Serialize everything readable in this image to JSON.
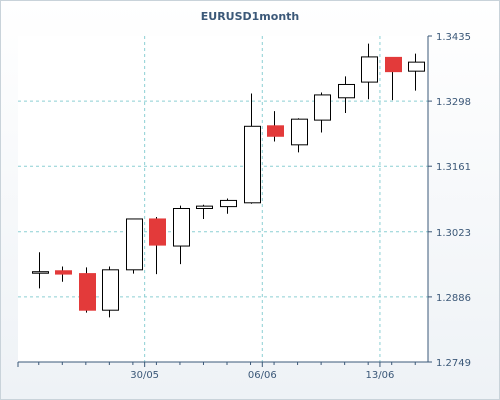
{
  "chart_data": {
    "type": "candlestick",
    "title": "EURUSD1month",
    "grid": true,
    "ylim": [
      1.2749,
      1.3435
    ],
    "y_ticks": [
      "1.3435",
      "1.3298",
      "1.3161",
      "1.3023",
      "1.2886",
      "1.2749"
    ],
    "x_ticks": [
      {
        "label": "30/05",
        "index": 4.5
      },
      {
        "label": "06/06",
        "index": 9.5
      },
      {
        "label": "13/06",
        "index": 14.5
      }
    ],
    "colors": {
      "up": "#ffffff",
      "down": "#e33a3a",
      "grid": "#8ccfd3",
      "axis": "#3b5878"
    },
    "candles": [
      {
        "open": 1.2939,
        "high": 1.298,
        "low": 1.2904,
        "close": 1.2939
      },
      {
        "open": 1.2941,
        "high": 1.295,
        "low": 1.2918,
        "close": 1.2934
      },
      {
        "open": 1.2935,
        "high": 1.2948,
        "low": 1.2853,
        "close": 1.2858
      },
      {
        "open": 1.2858,
        "high": 1.295,
        "low": 1.2843,
        "close": 1.2943
      },
      {
        "open": 1.2943,
        "high": 1.305,
        "low": 1.2935,
        "close": 1.305
      },
      {
        "open": 1.305,
        "high": 1.3054,
        "low": 1.2934,
        "close": 1.2995
      },
      {
        "open": 1.2993,
        "high": 1.3078,
        "low": 1.2955,
        "close": 1.3072
      },
      {
        "open": 1.3072,
        "high": 1.308,
        "low": 1.305,
        "close": 1.3077
      },
      {
        "open": 1.3076,
        "high": 1.3093,
        "low": 1.3061,
        "close": 1.3089
      },
      {
        "open": 1.3084,
        "high": 1.3314,
        "low": 1.3082,
        "close": 1.3245
      },
      {
        "open": 1.3246,
        "high": 1.3277,
        "low": 1.3213,
        "close": 1.3224
      },
      {
        "open": 1.3206,
        "high": 1.3262,
        "low": 1.319,
        "close": 1.326
      },
      {
        "open": 1.3258,
        "high": 1.3316,
        "low": 1.3232,
        "close": 1.3311
      },
      {
        "open": 1.3305,
        "high": 1.335,
        "low": 1.3273,
        "close": 1.3333
      },
      {
        "open": 1.3338,
        "high": 1.3419,
        "low": 1.3302,
        "close": 1.3391
      },
      {
        "open": 1.339,
        "high": 1.339,
        "low": 1.33,
        "close": 1.336
      },
      {
        "open": 1.3361,
        "high": 1.3398,
        "low": 1.332,
        "close": 1.338
      }
    ]
  }
}
